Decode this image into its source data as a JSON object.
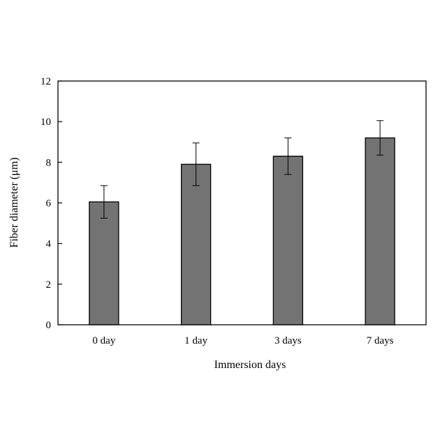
{
  "chart_data": {
    "type": "bar",
    "title": "",
    "xlabel": "Immersion days",
    "ylabel": "Fiber diameter (μm)",
    "categories": [
      "0 day",
      "1 day",
      "3 days",
      "7 days"
    ],
    "values": [
      6.05,
      7.9,
      8.3,
      9.2
    ],
    "errors": [
      0.8,
      1.05,
      0.9,
      0.85
    ],
    "ylim": [
      0,
      12
    ],
    "yticks": [
      0,
      2,
      4,
      6,
      8,
      10,
      12
    ],
    "grid": false,
    "legend": "none",
    "bar_color": "#737373",
    "bar_edge_color": "#000000"
  }
}
